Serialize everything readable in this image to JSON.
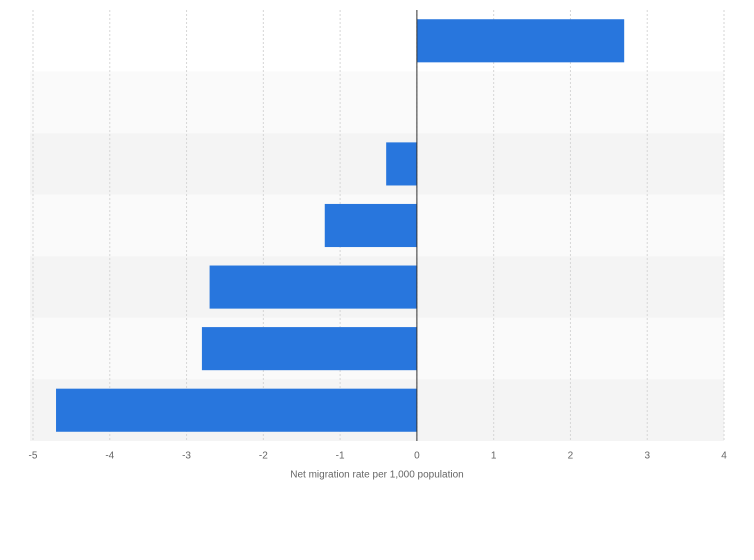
{
  "chart_data": {
    "type": "bar",
    "orientation": "horizontal",
    "x_label": "Net migration rate per 1,000 population",
    "categories": [
      null,
      null,
      null,
      null,
      null,
      null,
      null
    ],
    "values": [
      2.7,
      0,
      -0.4,
      -1.2,
      -2.7,
      -2.8,
      -4.7
    ],
    "color": "#2876dd",
    "xlim": [
      -5,
      4
    ],
    "xticks": [
      -5,
      -4,
      -3,
      -2,
      -1,
      0,
      1,
      2,
      3,
      4
    ],
    "grid": true
  }
}
